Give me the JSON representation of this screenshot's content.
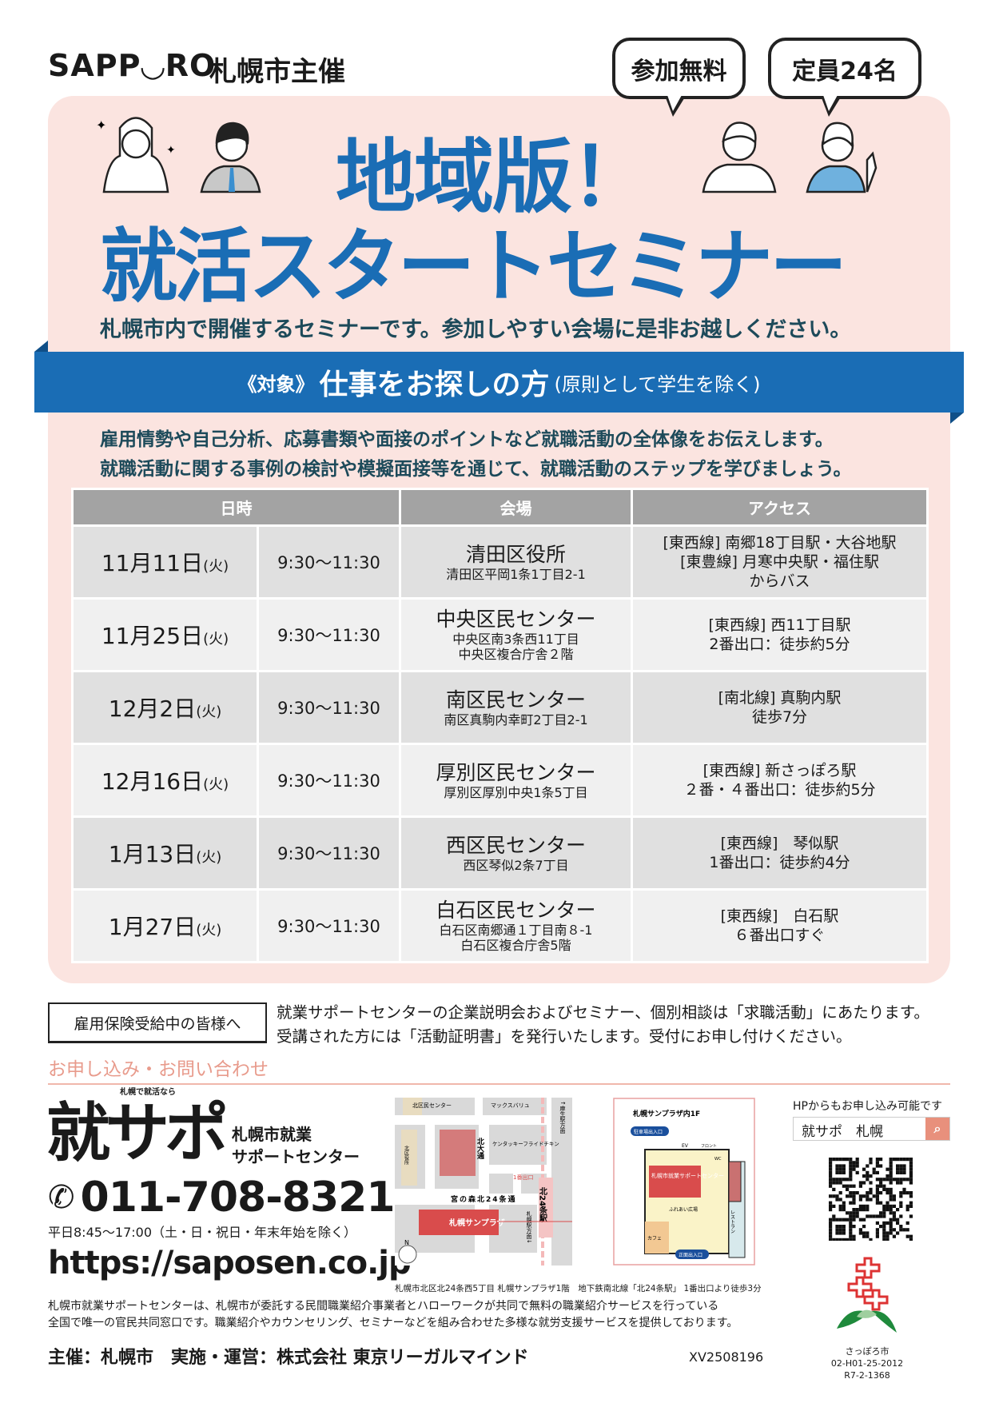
{
  "header": {
    "logo": "SAPP◡RO",
    "host": "札幌市主催",
    "badges": [
      "参加無料",
      "定員24名"
    ]
  },
  "hero": {
    "title1": "地域版！",
    "title2": "就活スタートセミナー",
    "subtitle": "札幌市内で開催するセミナーです。参加しやすい会場に是非お越しください。"
  },
  "target": {
    "label": "《対象》",
    "main": "仕事をお探しの方",
    "note": "(原則として学生を除く)"
  },
  "description": [
    "雇用情勢や自己分析、応募書類や面接のポイントなど就職活動の全体像をお伝えします。",
    "就職活動に関する事例の検討や模擬面接等を通じて、就職活動のステップを学びましょう。"
  ],
  "schedule": {
    "headers": [
      "日時",
      "会場",
      "アクセス"
    ],
    "rows": [
      {
        "date": "11月11日",
        "dow": "(火)",
        "time": "9:30～11:30",
        "venue": "清田区役所",
        "address": [
          "清田区平岡1条1丁目2-1"
        ],
        "access": [
          "[東西線] 南郷18丁目駅・大谷地駅",
          "[東豊線] 月寒中央駅・福住駅",
          "からバス"
        ]
      },
      {
        "date": "11月25日",
        "dow": "(火)",
        "time": "9:30～11:30",
        "venue": "中央区民センター",
        "address": [
          "中央区南3条西11丁目",
          "中央区複合庁舎２階"
        ],
        "access": [
          "[東西線] 西11丁目駅",
          "2番出口：徒歩約5分"
        ]
      },
      {
        "date": "12月2日",
        "dow": "(火)",
        "time": "9:30～11:30",
        "venue": "南区民センター",
        "address": [
          "南区真駒内幸町2丁目2-1"
        ],
        "access": [
          "[南北線] 真駒内駅",
          "徒歩7分"
        ]
      },
      {
        "date": "12月16日",
        "dow": "(火)",
        "time": "9:30～11:30",
        "venue": "厚別区民センター",
        "address": [
          "厚別区厚別中央1条5丁目"
        ],
        "access": [
          "[東西線] 新さっぽろ駅",
          "２番・４番出口：徒歩約5分"
        ]
      },
      {
        "date": "1月13日",
        "dow": "(火)",
        "time": "9:30～11:30",
        "venue": "西区民センター",
        "address": [
          "西区琴似2条7丁目"
        ],
        "access": [
          "[東西線]　琴似駅",
          "1番出口：徒歩約4分"
        ]
      },
      {
        "date": "1月27日",
        "dow": "(火)",
        "time": "9:30～11:30",
        "venue": "白石区民センター",
        "address": [
          "白石区南郷通１丁目南８-1",
          "白石区複合庁舎5階"
        ],
        "access": [
          "[東西線]　白石駅",
          "６番出口すぐ"
        ]
      }
    ]
  },
  "notice": {
    "box": "雇用保険受給中の皆様へ",
    "lines": [
      "就業サポートセンターの企業説明会およびセミナー、個別相談は「求職活動」にあたります。",
      "受講された方には「活動証明書」を発行いたします。受付にお申し付けください。"
    ]
  },
  "contact": {
    "heading": "お申し込み・お問い合わせ",
    "logo": "就サポ",
    "logo_tag": "札幌で就活なら",
    "center": [
      "札幌市就業",
      "サポートセンター"
    ],
    "phone": "011-708-8321",
    "hours": "平日8:45～17:00（土・日・祝日・年末年始を除く）",
    "url": "https://saposen.co.jp"
  },
  "map": {
    "labels": {
      "kita_center": "北区民センター",
      "maxvalu": "マックスバリュ",
      "kfc": "ケンタッキーフライドチキン",
      "ward_office": "北区役所",
      "kita_odori": "北大通",
      "miyanomori": "宮の森北24条通",
      "exit1": "1番出口",
      "station": "北24条駅",
      "to_asabu": "↑麻生駅方面",
      "to_sapporo": "札幌駅方面↓",
      "sunplaza": "札幌サンプラザ",
      "north": "N"
    },
    "floor": {
      "title": "札幌サンプラザ内1F",
      "parking": "駐車場出入口",
      "ev": "EV",
      "front": "フロント",
      "wc": "WC",
      "center": "札幌市就業サポートセンター",
      "plaza": "ふれあい広場",
      "cafe": "カフェ",
      "restaurant": "レストラン",
      "entrance": "正面出入口"
    },
    "caption": "札幌市北区北24条西5丁目 札幌サンプラザ1階　地下鉄南北線「北24条駅」 1番出口より徒歩3分"
  },
  "hp": {
    "label": "HPからもお申し込み可能です",
    "search_value": "就サポ　札幌"
  },
  "footer": {
    "text": [
      "札幌市就業サポートセンターは、札幌市が委託する民間職業紹介事業者とハローワークが共同で無料の職業紹介サービスを行っている",
      "全国で唯一の官民共同窓口です。職業紹介やカウンセリング、セミナーなどを組み合わせた多様な就労支援サービスを提供しております。"
    ],
    "host": "主催：札幌市　実施・運営：株式会社 東京リーガルマインド",
    "code": "XV2508196",
    "city": [
      "さっぽろ市",
      "02-H01-25-2012",
      "R7-2-1368"
    ]
  },
  "colors": {
    "blue": "#1a6db5",
    "pink_bg": "#fbe4e0",
    "accent_salmon": "#e8907c",
    "text_teal": "#1d4a5a"
  }
}
